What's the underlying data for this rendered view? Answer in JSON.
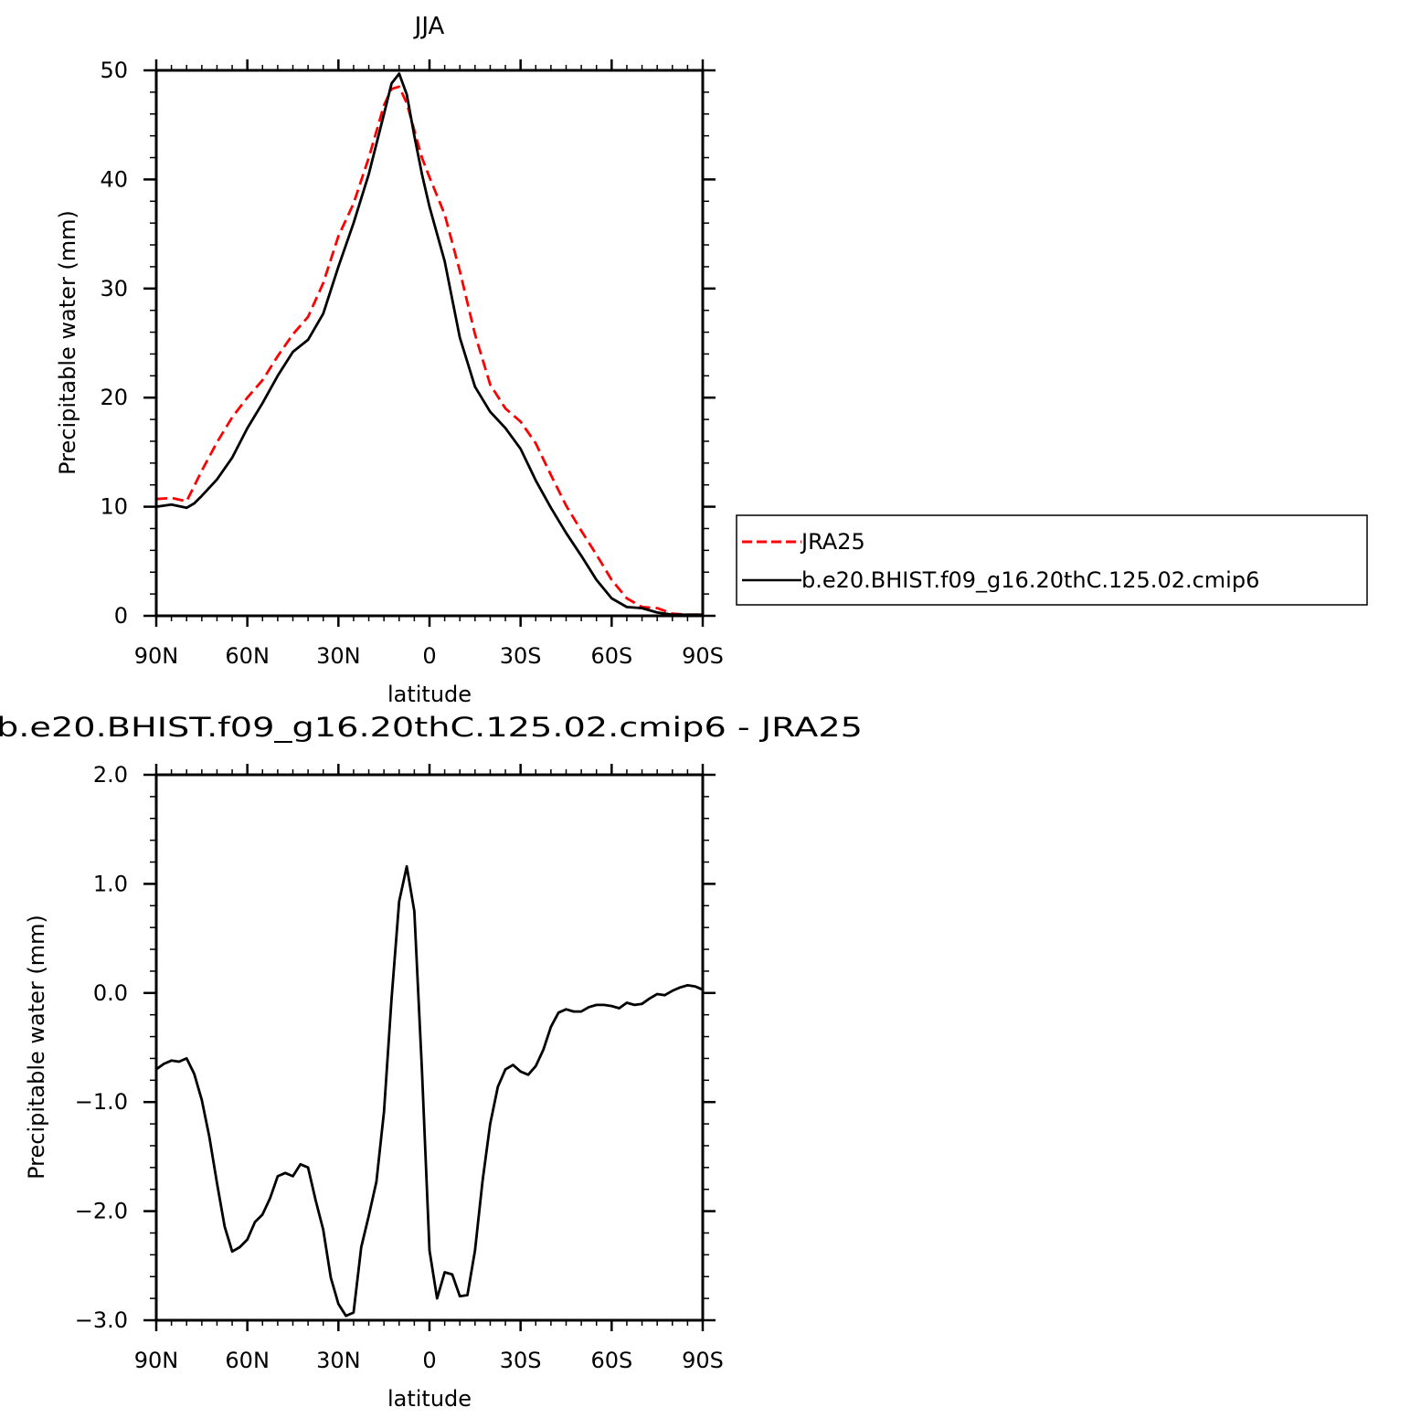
{
  "chart_data": [
    {
      "type": "line",
      "title": "JJA",
      "xlabel": "latitude",
      "ylabel": "Precipitable water (mm)",
      "xlim": [
        90,
        -90
      ],
      "ylim": [
        0,
        50
      ],
      "x_ticks": [
        90,
        60,
        30,
        0,
        -30,
        -60,
        -90
      ],
      "x_tick_labels": [
        "90N",
        "60N",
        "30N",
        "0",
        "30S",
        "60S",
        "90S"
      ],
      "y_ticks": [
        0,
        10,
        20,
        30,
        40,
        50
      ],
      "y_tick_labels": [
        "0",
        "10",
        "20",
        "30",
        "40",
        "50"
      ],
      "legend_position": "right",
      "series": [
        {
          "name": "JRA25",
          "color": "#ff0000",
          "style": "dashed",
          "x": [
            90,
            85,
            80,
            75,
            70,
            65,
            60,
            55,
            50,
            45,
            40,
            35,
            30,
            25,
            20,
            15,
            12.5,
            10,
            7.5,
            5,
            2.5,
            0,
            -5,
            -10,
            -15,
            -20,
            -25,
            -30,
            -35,
            -40,
            -45,
            -50,
            -55,
            -60,
            -65,
            -70,
            -75,
            -80,
            -85,
            -90
          ],
          "y": [
            10.7,
            10.8,
            10.5,
            13.3,
            15.9,
            18.2,
            20.0,
            21.6,
            23.8,
            25.8,
            27.4,
            30.5,
            34.8,
            37.8,
            42.0,
            46.8,
            48.3,
            48.5,
            47.0,
            44.5,
            42.0,
            40.2,
            36.8,
            31.6,
            25.8,
            21.2,
            19.0,
            17.8,
            15.8,
            12.9,
            10.1,
            7.8,
            5.6,
            3.3,
            1.6,
            0.8,
            0.7,
            0.2,
            0.1,
            0.1
          ]
        },
        {
          "name": "b.e20.BHIST.f09_g16.20thC.125.02.cmip6",
          "color": "#000000",
          "style": "solid",
          "x": [
            90,
            85,
            80,
            77.5,
            75,
            70,
            65,
            60,
            55,
            50,
            45,
            40,
            35,
            30,
            25,
            20,
            15,
            12.5,
            10,
            7.5,
            5,
            2.5,
            0,
            -5,
            -10,
            -15,
            -20,
            -25,
            -30,
            -35,
            -40,
            -45,
            -50,
            -55,
            -60,
            -65,
            -70,
            -75,
            -80,
            -85,
            -90
          ],
          "y": [
            10.0,
            10.2,
            9.9,
            10.3,
            11.0,
            12.5,
            14.5,
            17.2,
            19.5,
            22.0,
            24.2,
            25.3,
            27.7,
            32.0,
            36.0,
            40.5,
            46.0,
            48.8,
            49.7,
            47.8,
            44.0,
            40.5,
            37.5,
            32.5,
            25.5,
            21.0,
            18.7,
            17.2,
            15.3,
            12.4,
            9.9,
            7.6,
            5.5,
            3.3,
            1.6,
            0.8,
            0.7,
            0.3,
            0.1,
            0.1,
            0.1
          ]
        }
      ]
    },
    {
      "type": "line",
      "title": "b.e20.BHIST.f09_g16.20thC.125.02.cmip6 - JRA25",
      "xlabel": "latitude",
      "ylabel": "Precipitable water (mm)",
      "xlim": [
        90,
        -90
      ],
      "ylim": [
        -3.0,
        2.0
      ],
      "x_ticks": [
        90,
        60,
        30,
        0,
        -30,
        -60,
        -90
      ],
      "x_tick_labels": [
        "90N",
        "60N",
        "30N",
        "0",
        "30S",
        "60S",
        "90S"
      ],
      "y_ticks": [
        -3.0,
        -2.0,
        -1.0,
        0.0,
        1.0,
        2.0
      ],
      "y_tick_labels": [
        "−3.0",
        "−2.0",
        "−1.0",
        "0.0",
        "1.0",
        "2.0"
      ],
      "series": [
        {
          "color": "#000000",
          "style": "solid",
          "x": [
            90,
            87.5,
            85,
            82.5,
            80,
            77.5,
            75,
            72.5,
            70,
            67.5,
            65,
            62.5,
            60,
            57.5,
            55,
            52.5,
            50,
            47.5,
            45,
            42.5,
            40,
            37.5,
            35,
            32.5,
            30,
            27.5,
            25,
            22.5,
            20,
            17.5,
            15,
            12.5,
            10,
            7.5,
            5,
            2.5,
            0,
            -2.5,
            -5,
            -7.5,
            -10,
            -12.5,
            -15,
            -17.5,
            -20,
            -22.5,
            -25,
            -27.5,
            -30,
            -32.5,
            -35,
            -37.5,
            -40,
            -42.5,
            -45,
            -47.5,
            -50,
            -52.5,
            -55,
            -57.5,
            -60,
            -62.5,
            -65,
            -67.5,
            -70,
            -72.5,
            -75,
            -77.5,
            -80,
            -82.5,
            -85,
            -87.5,
            -90
          ],
          "y": [
            -0.7,
            -0.65,
            -0.62,
            -0.63,
            -0.6,
            -0.74,
            -0.98,
            -1.32,
            -1.74,
            -2.14,
            -2.37,
            -2.33,
            -2.26,
            -2.1,
            -2.03,
            -1.88,
            -1.68,
            -1.65,
            -1.68,
            -1.57,
            -1.6,
            -1.9,
            -2.17,
            -2.61,
            -2.85,
            -2.96,
            -2.93,
            -2.33,
            -2.04,
            -1.73,
            -1.09,
            -0.05,
            0.84,
            1.16,
            0.75,
            -0.7,
            -2.36,
            -2.8,
            -2.56,
            -2.58,
            -2.78,
            -2.77,
            -2.36,
            -1.72,
            -1.2,
            -0.86,
            -0.7,
            -0.66,
            -0.72,
            -0.75,
            -0.67,
            -0.52,
            -0.31,
            -0.18,
            -0.15,
            -0.17,
            -0.17,
            -0.13,
            -0.11,
            -0.11,
            -0.12,
            -0.14,
            -0.09,
            -0.11,
            -0.1,
            -0.05,
            -0.01,
            -0.02,
            0.02,
            0.05,
            0.07,
            0.06,
            0.03
          ]
        }
      ]
    }
  ]
}
